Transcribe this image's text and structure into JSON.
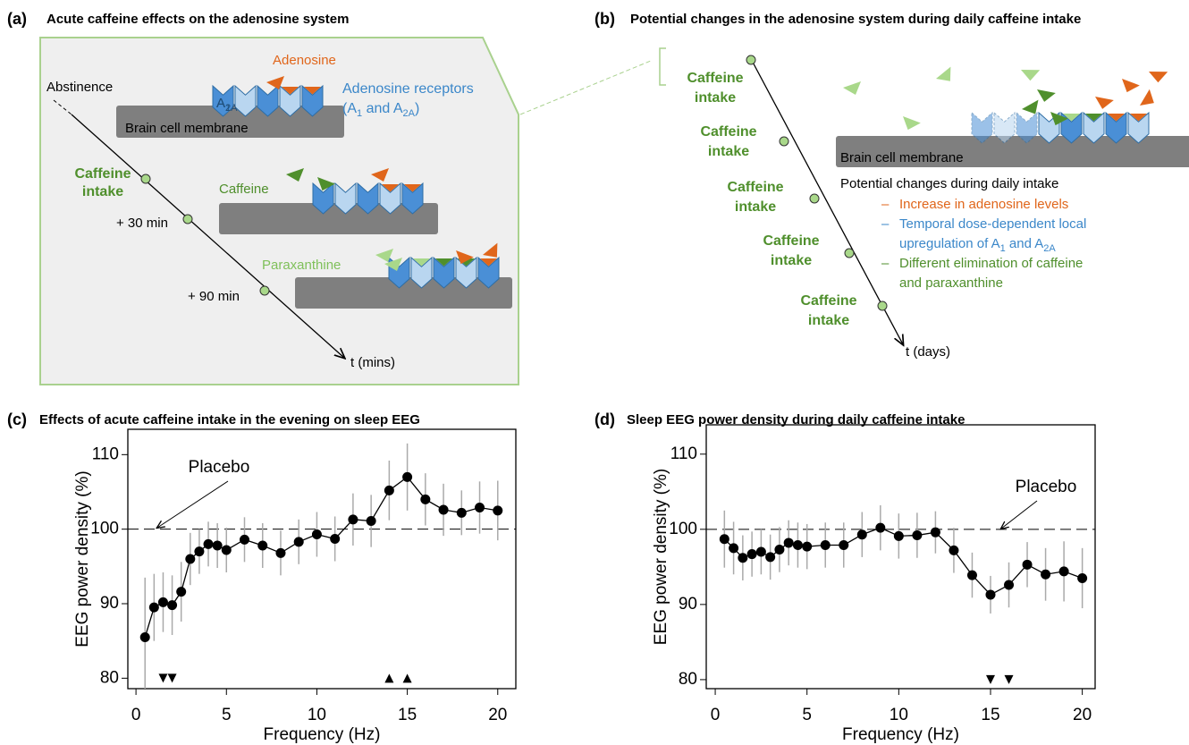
{
  "panel_a": {
    "label": "(a)",
    "title": "Acute caffeine effects on the adenosine system",
    "abstinence": "Abstinence",
    "caffeine_intake": [
      [
        "Caffeine"
      ],
      [
        "intake"
      ]
    ],
    "time_points": [
      "+ 30 min",
      "+ 90 min"
    ],
    "adenosine": "Adenosine",
    "receptors_label": [
      [
        "Adenosine receptors"
      ],
      [
        "(A",
        "1",
        " and A",
        "2A",
        ")"
      ]
    ],
    "receptor_subtypes": [
      [
        "A",
        "1"
      ],
      [
        "A",
        "2A"
      ]
    ],
    "membrane": "Brain cell membrane",
    "caffeine": "Caffeine",
    "paraxanthine": "Paraxanthine",
    "axis": "t (mins)"
  },
  "panel_b": {
    "label": "(b)",
    "title": "Potential changes in the adenosine system during daily caffeine intake",
    "caffeine_intake": [
      [
        [
          "Caffeine"
        ],
        [
          "intake"
        ]
      ],
      [
        [
          "Caffeine"
        ],
        [
          "intake"
        ]
      ],
      [
        [
          "Caffeine"
        ],
        [
          "intake"
        ]
      ],
      [
        [
          "Caffeine"
        ],
        [
          "intake"
        ]
      ],
      [
        [
          "Caffeine"
        ],
        [
          "intake"
        ]
      ]
    ],
    "membrane": "Brain cell membrane",
    "changes_title": "Potential changes during daily intake",
    "bullet": "–",
    "changes": [
      {
        "color": "#e0661b",
        "lines": [
          [
            "Increase in adenosine levels"
          ]
        ]
      },
      {
        "color": "#3b87c9",
        "lines": [
          [
            "Temporal dose-dependent local"
          ],
          [
            "upregulation of A",
            "1",
            " and A",
            "2A"
          ]
        ]
      },
      {
        "color": "#4f8f2c",
        "lines": [
          [
            "Different elimination of caffeine"
          ],
          [
            "and paraxanthine"
          ]
        ]
      }
    ],
    "axis": "t (days)"
  },
  "chart_data": [
    {
      "type": "scatter",
      "label": "(c)",
      "title": "Effects of acute caffeine intake in the evening on sleep EEG",
      "x_label": "Frequency (Hz)",
      "y_label": "EEG power density (%)",
      "color": "#000000",
      "error_color": "#aaaaaa",
      "x": [
        0.5,
        1,
        1.5,
        2,
        2.5,
        3,
        3.5,
        4,
        4.5,
        5,
        6,
        7,
        8,
        9,
        10,
        11,
        12,
        13,
        14,
        15,
        16,
        17,
        18,
        19,
        20
      ],
      "values": [
        85.5,
        89.5,
        90.2,
        89.8,
        91.6,
        96,
        97,
        98,
        97.8,
        97.2,
        98.6,
        97.8,
        96.8,
        98.3,
        99.3,
        98.7,
        101.3,
        101.1,
        105.2,
        107,
        104,
        102.6,
        102.2,
        102.9,
        102.5
      ],
      "errors": [
        8,
        4.5,
        4,
        4,
        4,
        3.5,
        3,
        3,
        3,
        3,
        3,
        3,
        3,
        3,
        3,
        3,
        3.5,
        3.5,
        4,
        4.5,
        3.5,
        3.5,
        3,
        3.5,
        4
      ],
      "markers": [
        {
          "x": 1.5,
          "y": 80,
          "direction": "down"
        },
        {
          "x": 2,
          "y": 80,
          "direction": "down"
        },
        {
          "x": 14,
          "y": 80,
          "direction": "up"
        },
        {
          "x": 15,
          "y": 80,
          "direction": "up"
        }
      ],
      "reference_line": 100,
      "annotation": "Placebo",
      "xlim": [
        -0.45,
        21
      ],
      "ylim": [
        78.6,
        113.4
      ],
      "xticks": [
        0,
        5,
        10,
        15,
        20
      ],
      "yticks": [
        80,
        90,
        100,
        110
      ]
    },
    {
      "type": "scatter",
      "label": "(d)",
      "title": "Sleep EEG power density during daily caffeine intake",
      "x_label": "Frequency (Hz)",
      "y_label": "EEG power density (%)",
      "color": "#000000",
      "error_color": "#aaaaaa",
      "x": [
        0.5,
        1,
        1.5,
        2,
        2.5,
        3,
        3.5,
        4,
        4.5,
        5,
        6,
        7,
        8,
        9,
        10,
        11,
        12,
        13,
        14,
        15,
        16,
        17,
        18,
        19,
        20
      ],
      "values": [
        98.7,
        97.5,
        96.2,
        96.7,
        97,
        96.3,
        97.3,
        98.2,
        97.9,
        97.7,
        97.9,
        97.9,
        99.3,
        100.2,
        99.1,
        99.2,
        99.6,
        97.2,
        93.9,
        91.3,
        92.6,
        95.3,
        94,
        94.4,
        93.5
      ],
      "errors": [
        3.8,
        3.5,
        3,
        3,
        3,
        3,
        3,
        3,
        3,
        3,
        3,
        3,
        3,
        3,
        3,
        3,
        2.8,
        3,
        3,
        2.5,
        3,
        3,
        3.5,
        4,
        4
      ],
      "markers": [
        {
          "x": 15,
          "y": 80,
          "direction": "down"
        },
        {
          "x": 16,
          "y": 80,
          "direction": "down"
        }
      ],
      "reference_line": 100,
      "annotation": "Placebo",
      "xlim": [
        -0.49,
        20.7
      ],
      "ylim": [
        78.8,
        113.9
      ],
      "xticks": [
        0,
        5,
        10,
        15,
        20
      ],
      "yticks": [
        80,
        90,
        100,
        110
      ]
    }
  ]
}
